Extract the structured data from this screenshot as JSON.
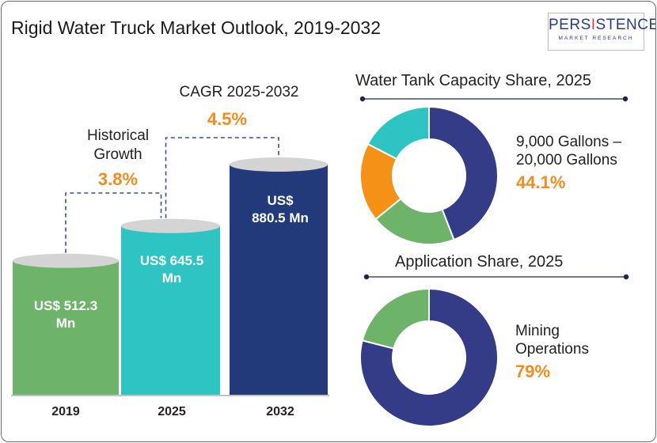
{
  "header": {
    "title": "Rigid Water Truck Market Outlook, 2019-2032"
  },
  "logo": {
    "brand_pre": "PERS",
    "brand_i": "I",
    "brand_mid": "S",
    "brand_i2": "T",
    "brand_post": "ENCE",
    "sub": "MARKET RESEARCH"
  },
  "colors": {
    "green": "#6db36a",
    "teal": "#2ec4c3",
    "navy": "#233a7a",
    "orange": "#f59117",
    "accent": "#f28c1e",
    "dot": "#1e2650"
  },
  "annotations": {
    "historical_label": "Historical",
    "historical_label2": "Growth",
    "historical_pct": "3.8%",
    "cagr_label": "CAGR 2025-2032",
    "cagr_pct": "4.5%"
  },
  "chart_data": [
    {
      "type": "bar",
      "categories": [
        "2019",
        "2025",
        "2032"
      ],
      "values": [
        512.3,
        645.5,
        880.5
      ],
      "value_labels": [
        "US$ 512.3 Mn",
        "US$ 645.5 Mn",
        "US$ 880.5 Mn"
      ],
      "value_labels_line1": [
        "US$ 512.3",
        "US$ 645.5",
        "US$"
      ],
      "value_labels_line2": [
        "Mn",
        "Mn",
        "880.5 Mn"
      ],
      "unit": "US$ Mn",
      "title": "Rigid Water Truck Market Outlook, 2019-2032",
      "colors": [
        "#6db36a",
        "#2ec4c3",
        "#233a7a"
      ]
    },
    {
      "type": "pie",
      "title": "Water Tank Capacity Share, 2025",
      "highlight_label_line1": "9,000 Gallons –",
      "highlight_label_line2": "20,000 Gallons",
      "highlight_label": "9,000 Gallons – 20,000 Gallons",
      "highlight_value": "44.1%",
      "segments": [
        {
          "value": 44.1,
          "color": "#343b87"
        },
        {
          "value": 20.0,
          "color": "#6db36a"
        },
        {
          "value": 18.5,
          "color": "#f59117"
        },
        {
          "value": 17.4,
          "color": "#2ec4c3"
        }
      ]
    },
    {
      "type": "pie",
      "title": "Application Share, 2025",
      "highlight_label_line1": "Mining",
      "highlight_label_line2": "Operations",
      "highlight_label": "Mining Operations",
      "highlight_value": "79%",
      "segments": [
        {
          "value": 79,
          "color": "#343b87"
        },
        {
          "value": 21,
          "color": "#6db36a"
        }
      ]
    }
  ]
}
